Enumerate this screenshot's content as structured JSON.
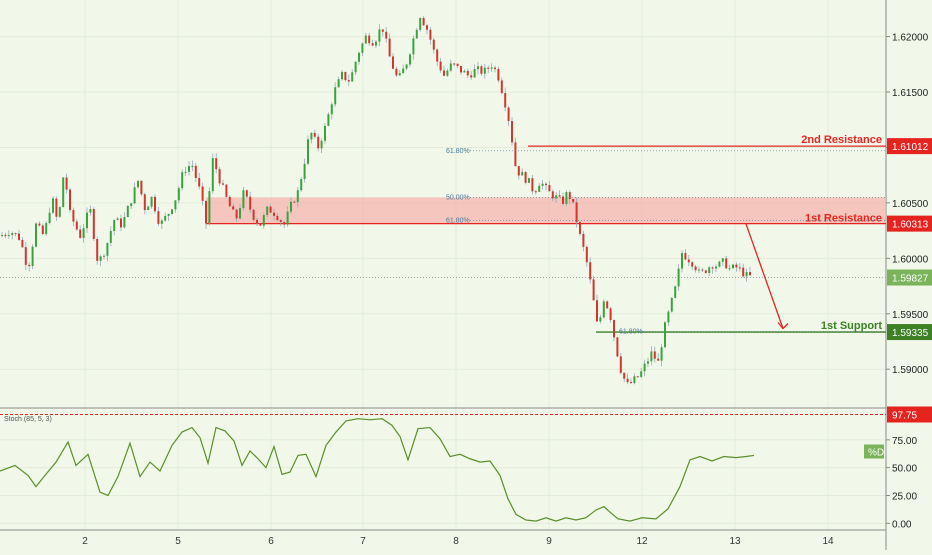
{
  "chart_data": [
    {
      "type": "candlestick",
      "price_axis": {
        "ticks": [
          "1.62000",
          "1.61500",
          "1.61000",
          "1.60500",
          "1.60000",
          "1.59500",
          "1.59000"
        ],
        "ylim": [
          1.5865,
          1.6233
        ]
      },
      "x_axis": {
        "ticks": [
          "2",
          "5",
          "6",
          "7",
          "8",
          "9",
          "12",
          "13",
          "14"
        ]
      },
      "current_price": "1.59827",
      "levels": [
        {
          "name": "2nd Resistance",
          "value": "1.61012",
          "color": "#e52420"
        },
        {
          "name": "1st Resistance",
          "value": "1.60313",
          "color": "#e52420"
        },
        {
          "name": "1st Support",
          "value": "1.59335",
          "color": "#3d8026"
        }
      ],
      "zone": [
        1.6031,
        1.6055
      ],
      "fib_labels": [
        {
          "text": "61.80%",
          "price": 1.6097
        },
        {
          "text": "50.00%",
          "price": 1.6055
        },
        {
          "text": "61.80%",
          "price": 1.6034
        },
        {
          "text": "61.80%",
          "price": 1.5934
        }
      ],
      "forecast_arrow": {
        "from_price": 1.6031,
        "to_price": 1.5934
      },
      "ohlc_path": [
        [
          0,
          1.602
        ],
        [
          10,
          1.6025
        ],
        [
          20,
          1.6018
        ],
        [
          28,
          1.599
        ],
        [
          36,
          1.603
        ],
        [
          44,
          1.602
        ],
        [
          52,
          1.6055
        ],
        [
          58,
          1.603
        ],
        [
          64,
          1.608
        ],
        [
          70,
          1.604
        ],
        [
          80,
          1.602
        ],
        [
          90,
          1.6045
        ],
        [
          98,
          1.5995
        ],
        [
          106,
          1.601
        ],
        [
          114,
          1.6035
        ],
        [
          122,
          1.603
        ],
        [
          130,
          1.605
        ],
        [
          138,
          1.607
        ],
        [
          145,
          1.6045
        ],
        [
          152,
          1.6055
        ],
        [
          160,
          1.603
        ],
        [
          168,
          1.604
        ],
        [
          176,
          1.6055
        ],
        [
          184,
          1.608
        ],
        [
          192,
          1.6085
        ],
        [
          200,
          1.606
        ],
        [
          206,
          1.6032
        ],
        [
          213,
          1.609
        ],
        [
          220,
          1.607
        ],
        [
          228,
          1.605
        ],
        [
          236,
          1.6035
        ],
        [
          244,
          1.606
        ],
        [
          252,
          1.604
        ],
        [
          260,
          1.603
        ],
        [
          268,
          1.6045
        ],
        [
          276,
          1.604
        ],
        [
          284,
          1.603
        ],
        [
          292,
          1.605
        ],
        [
          298,
          1.606
        ],
        [
          304,
          1.6085
        ],
        [
          310,
          1.6115
        ],
        [
          318,
          1.61
        ],
        [
          326,
          1.612
        ],
        [
          334,
          1.615
        ],
        [
          342,
          1.6165
        ],
        [
          350,
          1.616
        ],
        [
          358,
          1.6185
        ],
        [
          366,
          1.62
        ],
        [
          374,
          1.6195
        ],
        [
          382,
          1.621
        ],
        [
          390,
          1.618
        ],
        [
          398,
          1.616
        ],
        [
          406,
          1.6175
        ],
        [
          414,
          1.62
        ],
        [
          420,
          1.622
        ],
        [
          428,
          1.6205
        ],
        [
          436,
          1.618
        ],
        [
          444,
          1.6165
        ],
        [
          452,
          1.6175
        ],
        [
          460,
          1.617
        ],
        [
          468,
          1.6165
        ],
        [
          476,
          1.617
        ],
        [
          484,
          1.6168
        ],
        [
          492,
          1.6175
        ],
        [
          498,
          1.6165
        ],
        [
          504,
          1.6145
        ],
        [
          510,
          1.612
        ],
        [
          516,
          1.608
        ],
        [
          522,
          1.6075
        ],
        [
          528,
          1.607
        ],
        [
          534,
          1.606
        ],
        [
          540,
          1.607
        ],
        [
          548,
          1.606
        ],
        [
          556,
          1.6055
        ],
        [
          562,
          1.605
        ],
        [
          568,
          1.606
        ],
        [
          574,
          1.6045
        ],
        [
          580,
          1.602
        ],
        [
          586,
          1.6
        ],
        [
          592,
          1.597
        ],
        [
          598,
          1.5935
        ],
        [
          604,
          1.5965
        ],
        [
          610,
          1.595
        ],
        [
          616,
          1.592
        ],
        [
          622,
          1.5895
        ],
        [
          628,
          1.5885
        ],
        [
          634,
          1.589
        ],
        [
          640,
          1.5895
        ],
        [
          646,
          1.5905
        ],
        [
          652,
          1.5915
        ],
        [
          658,
          1.5905
        ],
        [
          664,
          1.5935
        ],
        [
          670,
          1.5955
        ],
        [
          676,
          1.5975
        ],
        [
          682,
          1.6005
        ],
        [
          688,
          1.6
        ],
        [
          694,
          1.5995
        ],
        [
          700,
          1.5985
        ],
        [
          706,
          1.599
        ],
        [
          712,
          1.5995
        ],
        [
          718,
          1.5993
        ],
        [
          724,
          1.5997
        ],
        [
          730,
          1.599
        ],
        [
          736,
          1.5992
        ],
        [
          742,
          1.5988
        ],
        [
          748,
          1.5983
        ],
        [
          753,
          1.5984
        ]
      ]
    },
    {
      "type": "line",
      "indicator": "Stoch (85, 5, 3)",
      "series_label": "%D",
      "overbought_level": "97.75",
      "y_ticks": [
        "75.00",
        "50.00",
        "25.00",
        "0.00"
      ],
      "ylim": [
        -6,
        100
      ],
      "values": [
        [
          0,
          47
        ],
        [
          15,
          52
        ],
        [
          28,
          43
        ],
        [
          36,
          33
        ],
        [
          44,
          42
        ],
        [
          56,
          55
        ],
        [
          68,
          73
        ],
        [
          76,
          52
        ],
        [
          88,
          62
        ],
        [
          100,
          28
        ],
        [
          108,
          25
        ],
        [
          118,
          42
        ],
        [
          130,
          72
        ],
        [
          140,
          42
        ],
        [
          150,
          55
        ],
        [
          160,
          47
        ],
        [
          172,
          70
        ],
        [
          182,
          82
        ],
        [
          192,
          86
        ],
        [
          200,
          77
        ],
        [
          208,
          54
        ],
        [
          216,
          86
        ],
        [
          225,
          83
        ],
        [
          234,
          74
        ],
        [
          242,
          52
        ],
        [
          250,
          65
        ],
        [
          258,
          58
        ],
        [
          266,
          50
        ],
        [
          274,
          69
        ],
        [
          282,
          44
        ],
        [
          290,
          46
        ],
        [
          298,
          61
        ],
        [
          306,
          62
        ],
        [
          316,
          42
        ],
        [
          326,
          70
        ],
        [
          336,
          82
        ],
        [
          346,
          92
        ],
        [
          358,
          94
        ],
        [
          370,
          93
        ],
        [
          382,
          94
        ],
        [
          392,
          88
        ],
        [
          400,
          78
        ],
        [
          408,
          57
        ],
        [
          418,
          85
        ],
        [
          430,
          86
        ],
        [
          440,
          76
        ],
        [
          450,
          60
        ],
        [
          460,
          62
        ],
        [
          470,
          58
        ],
        [
          480,
          55
        ],
        [
          490,
          56
        ],
        [
          500,
          43
        ],
        [
          508,
          22
        ],
        [
          516,
          8
        ],
        [
          526,
          3
        ],
        [
          536,
          2
        ],
        [
          546,
          5
        ],
        [
          556,
          2
        ],
        [
          566,
          5
        ],
        [
          576,
          3
        ],
        [
          586,
          5
        ],
        [
          596,
          12
        ],
        [
          604,
          15
        ],
        [
          610,
          10
        ],
        [
          618,
          4
        ],
        [
          630,
          2
        ],
        [
          642,
          5
        ],
        [
          656,
          4
        ],
        [
          668,
          13
        ],
        [
          680,
          33
        ],
        [
          690,
          57
        ],
        [
          700,
          60
        ],
        [
          712,
          56
        ],
        [
          724,
          60
        ],
        [
          736,
          59
        ],
        [
          746,
          60
        ],
        [
          754,
          61
        ]
      ]
    }
  ]
}
